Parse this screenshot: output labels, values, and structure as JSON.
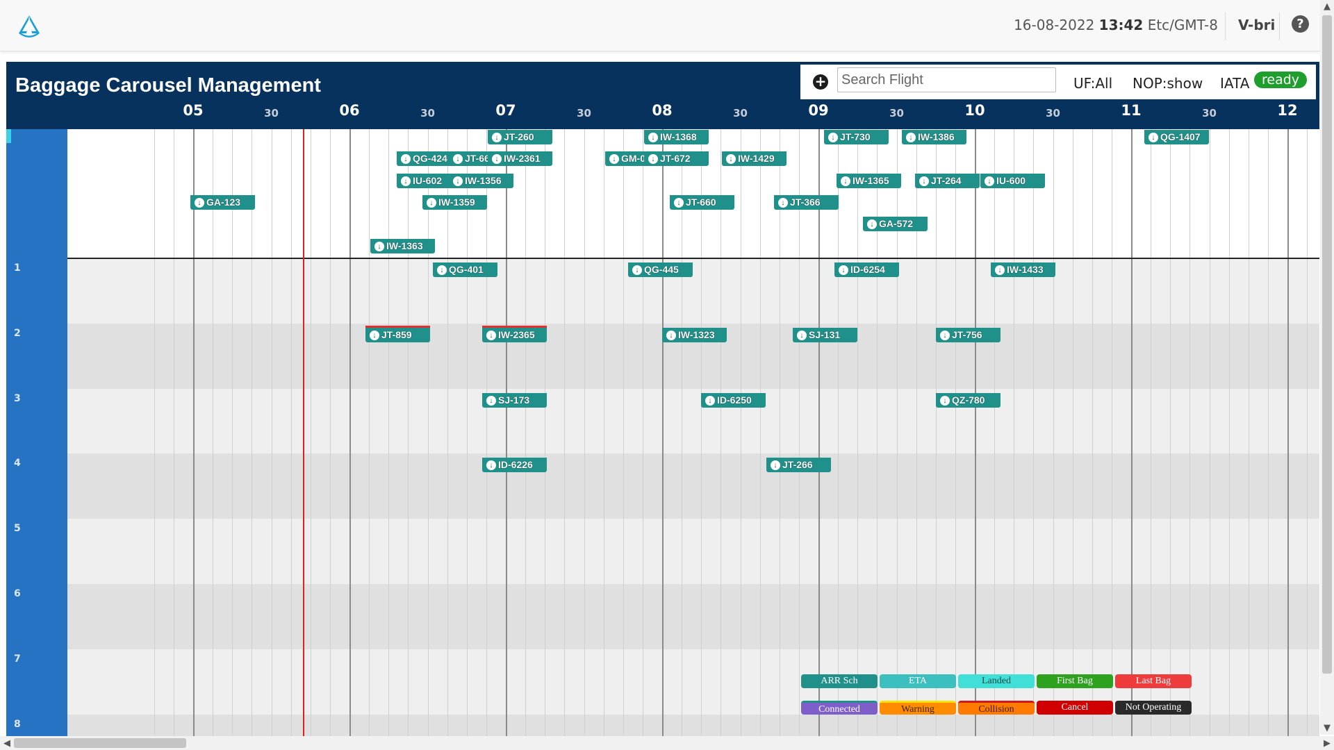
{
  "header": {
    "date": "16-08-2022",
    "time": "13:42",
    "timezone": "Etc/GMT-8",
    "user": "V-bri",
    "help_icon": "?"
  },
  "panel": {
    "title": "Baggage Carousel Management",
    "search_placeholder": "Search Flight",
    "add_icon": "+",
    "uf_label": "UF:All",
    "nop_label": "NOP:show",
    "iata_label": "IATA",
    "status_badge": "ready"
  },
  "timeline": {
    "ticks": [
      {
        "label": "05",
        "kind": "hour"
      },
      {
        "label": "30",
        "kind": "half"
      },
      {
        "label": "06",
        "kind": "hour"
      },
      {
        "label": "30",
        "kind": "half"
      },
      {
        "label": "07",
        "kind": "hour"
      },
      {
        "label": "30",
        "kind": "half"
      },
      {
        "label": "08",
        "kind": "hour"
      },
      {
        "label": "30",
        "kind": "half"
      },
      {
        "label": "09",
        "kind": "hour"
      },
      {
        "label": "30",
        "kind": "half"
      },
      {
        "label": "10",
        "kind": "hour"
      },
      {
        "label": "30",
        "kind": "half"
      },
      {
        "label": "11",
        "kind": "hour"
      },
      {
        "label": "30",
        "kind": "half"
      },
      {
        "label": "12",
        "kind": "hour"
      }
    ],
    "current_time": "05:42",
    "row_labels": [
      "",
      "1",
      "2",
      "3",
      "4",
      "5",
      "6",
      "7",
      "8"
    ]
  },
  "flights": [
    {
      "code": "JT-260",
      "row": 0,
      "lane": 0,
      "start": "06:53"
    },
    {
      "code": "IW-1368",
      "row": 0,
      "lane": 0,
      "start": "07:53"
    },
    {
      "code": "JT-730",
      "row": 0,
      "lane": 0,
      "start": "09:02"
    },
    {
      "code": "IW-1386",
      "row": 0,
      "lane": 0,
      "start": "09:32"
    },
    {
      "code": "QG-1407",
      "row": 0,
      "lane": 0,
      "start": "11:05"
    },
    {
      "code": "QG-424",
      "row": 0,
      "lane": 1,
      "start": "06:18"
    },
    {
      "code": "JT-66",
      "row": 0,
      "lane": 1,
      "start": "06:38"
    },
    {
      "code": "IW-2361",
      "row": 0,
      "lane": 1,
      "start": "06:53"
    },
    {
      "code": "GM-0",
      "row": 0,
      "lane": 1,
      "start": "07:38"
    },
    {
      "code": "JT-672",
      "row": 0,
      "lane": 1,
      "start": "07:53"
    },
    {
      "code": "IW-1429",
      "row": 0,
      "lane": 1,
      "start": "08:23"
    },
    {
      "code": "IU-602",
      "row": 0,
      "lane": 2,
      "start": "06:18"
    },
    {
      "code": "IW-1356",
      "row": 0,
      "lane": 2,
      "start": "06:38"
    },
    {
      "code": "IW-1365",
      "row": 0,
      "lane": 2,
      "start": "09:07"
    },
    {
      "code": "JT-264",
      "row": 0,
      "lane": 2,
      "start": "09:37"
    },
    {
      "code": "IU-600",
      "row": 0,
      "lane": 2,
      "start": "10:02"
    },
    {
      "code": "GA-123",
      "row": 0,
      "lane": 3,
      "start": "04:59"
    },
    {
      "code": "IW-1359",
      "row": 0,
      "lane": 3,
      "start": "06:28"
    },
    {
      "code": "JT-660",
      "row": 0,
      "lane": 3,
      "start": "08:03"
    },
    {
      "code": "JT-366",
      "row": 0,
      "lane": 3,
      "start": "08:43"
    },
    {
      "code": "GA-572",
      "row": 0,
      "lane": 4,
      "start": "09:17"
    },
    {
      "code": "IW-1363",
      "row": 0,
      "lane": 5,
      "start": "06:08"
    },
    {
      "code": "QG-401",
      "row": 1,
      "lane": 0,
      "start": "06:32"
    },
    {
      "code": "QG-445",
      "row": 1,
      "lane": 0,
      "start": "07:47"
    },
    {
      "code": "ID-6254",
      "row": 1,
      "lane": 0,
      "start": "09:06"
    },
    {
      "code": "IW-1433",
      "row": 1,
      "lane": 0,
      "start": "10:06"
    },
    {
      "code": "JT-859",
      "row": 2,
      "lane": 0,
      "start": "06:06",
      "flag": true
    },
    {
      "code": "IW-2365",
      "row": 2,
      "lane": 0,
      "start": "06:51",
      "flag": true
    },
    {
      "code": "IW-1323",
      "row": 2,
      "lane": 0,
      "start": "08:00"
    },
    {
      "code": "SJ-131",
      "row": 2,
      "lane": 0,
      "start": "08:50"
    },
    {
      "code": "JT-756",
      "row": 2,
      "lane": 0,
      "start": "09:45"
    },
    {
      "code": "SJ-173",
      "row": 3,
      "lane": 0,
      "start": "06:51"
    },
    {
      "code": "ID-6250",
      "row": 3,
      "lane": 0,
      "start": "08:15"
    },
    {
      "code": "QZ-780",
      "row": 3,
      "lane": 0,
      "start": "09:45"
    },
    {
      "code": "ID-6226",
      "row": 4,
      "lane": 0,
      "start": "06:51"
    },
    {
      "code": "JT-266",
      "row": 4,
      "lane": 0,
      "start": "08:40"
    }
  ],
  "legend": [
    {
      "label": "ARR Sch",
      "color": "#1f908a",
      "text_color": "#ffffff"
    },
    {
      "label": "ETA",
      "color": "#3cbfbf",
      "text_color": "#ffffff"
    },
    {
      "label": "Landed",
      "color": "#40e0d8",
      "text_color": "#1a4a48"
    },
    {
      "label": "First Bag",
      "color": "#2ea11f",
      "text_color": "#ffffff"
    },
    {
      "label": "Last Bag",
      "color": "#ee3b3b",
      "text_color": "#ffffff"
    },
    {
      "label": "Connected",
      "color": "#7e5ec9",
      "text_color": "#ffffff",
      "band": "#1f908a"
    },
    {
      "label": "Warning",
      "color": "#ff8c00",
      "text_color": "#3a2200",
      "band": "#ffe100"
    },
    {
      "label": "Collision",
      "color": "#ff7a00",
      "text_color": "#3a1a00",
      "band": "#d31818"
    },
    {
      "label": "Cancel",
      "color": "#d00000",
      "text_color": "#ffffff"
    },
    {
      "label": "Not Operating",
      "color": "#2a2a2a",
      "text_color": "#ffffff"
    }
  ]
}
